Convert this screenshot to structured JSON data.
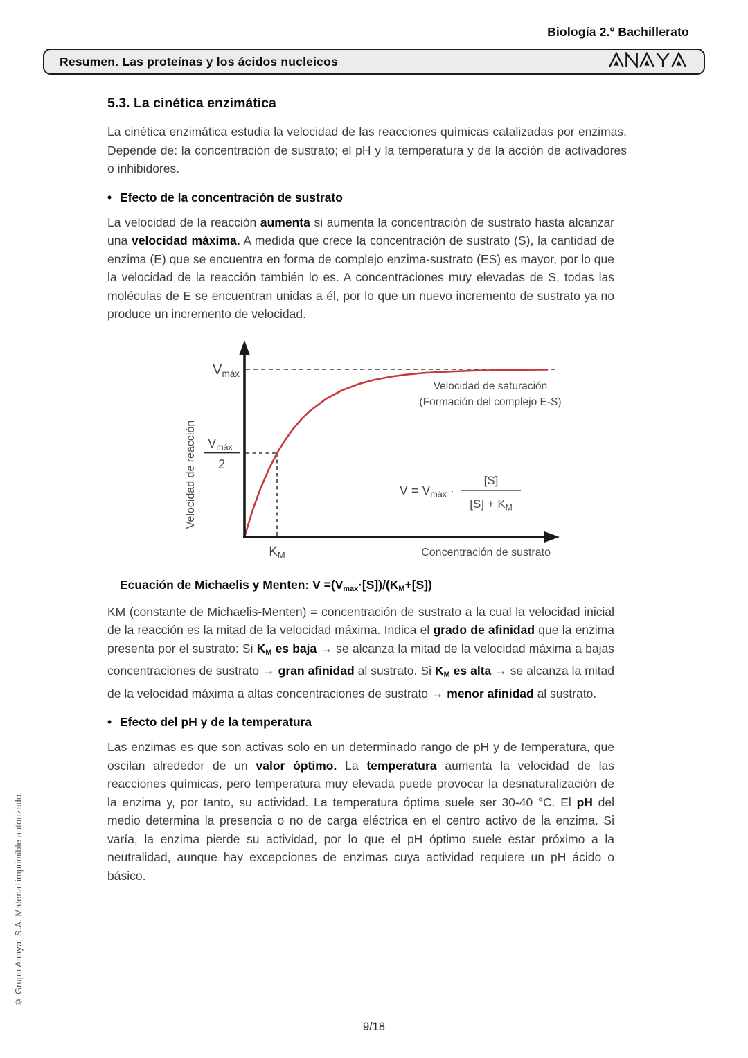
{
  "page": {
    "edition": "Biología 2.º Bachillerato",
    "header_bar": {
      "title": "Resumen. Las proteínas y los ácidos nucleicos",
      "logo_text": "ANAYA"
    },
    "copyright_note": "© Grupo Anaya, S.A. Material imprimible autorizado.",
    "footer": {
      "page_number": "9/18"
    }
  },
  "section": {
    "title": "5.3. La cinética enzimática",
    "intro_runs": [
      {
        "t": "La cinética enzimática estudia la velocidad de las reacciones químicas catalizadas por enzimas. Depende de: la concentración de sustrato; el pH y la temperatura y de la acción de activadores o inhibidores."
      }
    ],
    "bullets": [
      {
        "marker": "•",
        "heading": "Efecto de la concentración de sustrato",
        "paragraph_runs": [
          {
            "t": "La velocidad de la reacción "
          },
          {
            "t": "aumenta",
            "b": true
          },
          {
            "t": " si aumenta la concentración de sustrato hasta alcanzar una "
          },
          {
            "t": "velocidad máxima.",
            "b": true
          },
          {
            "t": " A medida que crece la concentración de sustrato (S), la cantidad de enzima (E) que se encuentra en forma de complejo enzima-sustrato (ES) es mayor, por lo que la velocidad de la reacción también lo es. A concentraciones muy elevadas de S, todas las moléculas de E se encuentran unidas a él, por lo que un nuevo incremento de sustrato ya no produce un incremento de velocidad."
          }
        ]
      },
      {
        "marker": "•",
        "heading": "Efecto del pH y de la temperatura",
        "paragraph_runs": [
          {
            "t": "Las enzimas es que son activas solo en un determinado rango de pH y de temperatura, que oscilan alrededor de un "
          },
          {
            "t": "valor óptimo.",
            "b": true
          },
          {
            "t": " La "
          },
          {
            "t": "temperatura",
            "b": true
          },
          {
            "t": " aumenta la velocidad de las reacciones químicas, pero temperatura muy elevada puede provocar la desnaturalización de la enzima y, por tanto, su actividad. La temperatura óptima suele ser 30-40 °C. El "
          },
          {
            "t": "pH",
            "b": true
          },
          {
            "t": " del medio determina la presencia o no de carga eléctrica en el centro activo de la enzima. Si varía, la enzima pierde su actividad, por lo que el pH óptimo suele estar próximo a la neutralidad, aunque hay excepciones de enzimas cuya actividad requiere un pH ácido o básico."
          }
        ]
      }
    ],
    "equation_heading_runs": [
      {
        "t": "Ecuación de Michaelis y Menten: V =(V",
        "b": true
      },
      {
        "t": "max",
        "b": true,
        "sub": true
      },
      {
        "t": "·[S])/(K",
        "b": true
      },
      {
        "t": "M",
        "b": true,
        "sub": true
      },
      {
        "t": "+[S])",
        "b": true
      }
    ],
    "km_paragraph_runs": [
      {
        "t": "KM (constante de Michaelis-Menten) = concentración de sustrato a la cual la velocidad inicial de la reacción es la mitad de la velocidad máxima. Indica el "
      },
      {
        "t": "grado de afinidad",
        "b": true
      },
      {
        "t": " que la enzima presenta por el sustrato: Si "
      },
      {
        "t": "K",
        "b": true
      },
      {
        "t": "M",
        "b": true,
        "sub": true
      },
      {
        "t": " es baja",
        "b": true
      },
      {
        "t": " → se alcanza la mitad de la velocidad máxima a bajas concentraciones de sustrato → "
      },
      {
        "t": "gran afinidad",
        "b": true
      },
      {
        "t": " al sustrato. Si "
      },
      {
        "t": "K",
        "b": true
      },
      {
        "t": "M",
        "b": true,
        "sub": true
      },
      {
        "t": " es alta",
        "b": true
      },
      {
        "t": " → se alcanza la mitad de la velocidad máxima a altas concentraciones de sustrato → "
      },
      {
        "t": "menor afinidad",
        "b": true
      },
      {
        "t": " al sustrato."
      }
    ]
  },
  "chart": {
    "labels": {
      "v": "V",
      "max_sub": "máx",
      "half_num_v": "V",
      "half_num_sub": "máx",
      "half_den": "2",
      "km_k": "K",
      "km_sub": "M",
      "ylabel": "Velocidad de reacción",
      "xlabel": "Concentración de sustrato",
      "note1": "Velocidad de saturación",
      "note2": "(Formación del complejo E-S)",
      "eq_left": "V = V",
      "eq_left_sub": "máx",
      "eq_dot": " · ",
      "eq_num": "[S]",
      "eq_den": "[S] + K",
      "eq_den_sub": "M"
    }
  },
  "chart_data": {
    "type": "line",
    "title": "",
    "xlabel": "Concentración de sustrato",
    "ylabel": "Velocidad de reacción",
    "x_units": "múltiplos de K_M (sin escala numérica)",
    "y_units": "fracción de V_máx (sin escala numérica)",
    "xlim": [
      0,
      9.3
    ],
    "ylim": [
      0,
      1.1
    ],
    "grid": false,
    "legend": false,
    "series": [
      {
        "name": "Velocidad de reacción",
        "color": "#c83a3c",
        "points": [
          [
            0,
            0
          ],
          [
            0.25,
            0.159
          ],
          [
            0.5,
            0.293
          ],
          [
            0.75,
            0.405
          ],
          [
            1,
            0.5
          ],
          [
            1.25,
            0.579
          ],
          [
            1.5,
            0.646
          ],
          [
            1.75,
            0.702
          ],
          [
            2,
            0.75
          ],
          [
            2.5,
            0.823
          ],
          [
            3,
            0.875
          ],
          [
            3.5,
            0.912
          ],
          [
            4,
            0.938
          ],
          [
            4.5,
            0.956
          ],
          [
            5,
            0.969
          ],
          [
            5.5,
            0.978
          ],
          [
            6,
            0.984
          ],
          [
            7,
            0.992
          ],
          [
            8,
            0.996
          ],
          [
            9.3,
            0.998
          ]
        ]
      }
    ],
    "annotations": [
      {
        "text": "V_máx",
        "type": "asíntota horizontal punteada",
        "y": 1
      },
      {
        "text": "V_máx/2",
        "type": "línea de referencia punteada",
        "y": 0.5
      },
      {
        "text": "K_M",
        "type": "línea de referencia punteada",
        "x": 1
      },
      {
        "text": "Velocidad de saturación (Formación del complejo E-S)",
        "type": "nota"
      },
      {
        "text": "V = V_máx · [S]/([S] + K_M)",
        "type": "ecuación"
      }
    ]
  }
}
